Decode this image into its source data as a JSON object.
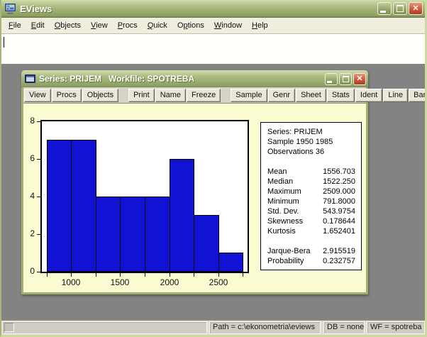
{
  "window": {
    "title": "EViews"
  },
  "menu": {
    "items": [
      {
        "label": "File",
        "mnemonic": 0
      },
      {
        "label": "Edit",
        "mnemonic": 0
      },
      {
        "label": "Objects",
        "mnemonic": 0
      },
      {
        "label": "View",
        "mnemonic": 0
      },
      {
        "label": "Procs",
        "mnemonic": 0
      },
      {
        "label": "Quick",
        "mnemonic": 0
      },
      {
        "label": "Options",
        "mnemonic": 1
      },
      {
        "label": "Window",
        "mnemonic": 0
      },
      {
        "label": "Help",
        "mnemonic": 0
      }
    ]
  },
  "child_window": {
    "title": "Series: PRIJEM   Workfile: SPOTREBA",
    "toolbar_groups": [
      [
        "View",
        "Procs",
        "Objects"
      ],
      [
        "Print",
        "Name",
        "Freeze"
      ],
      [
        "Sample",
        "Genr",
        "Sheet",
        "Stats",
        "Ident",
        "Line",
        "Bar"
      ]
    ]
  },
  "chart_data": {
    "type": "bar",
    "title": "",
    "xlabel": "",
    "ylabel": "",
    "bin_start": 750,
    "bin_width": 250,
    "bins": [
      {
        "range": "750-1000",
        "count": 7
      },
      {
        "range": "1000-1250",
        "count": 7
      },
      {
        "range": "1250-1500",
        "count": 4
      },
      {
        "range": "1500-1750",
        "count": 4
      },
      {
        "range": "1750-2000",
        "count": 4
      },
      {
        "range": "2000-2250",
        "count": 6
      },
      {
        "range": "2250-2500",
        "count": 3
      },
      {
        "range": "2500-2750",
        "count": 1
      }
    ],
    "values": [
      7,
      7,
      4,
      4,
      4,
      6,
      3,
      1
    ],
    "x_tick_labels": [
      1000,
      1500,
      2000,
      2500
    ],
    "y_ticks": [
      0,
      2,
      4,
      6,
      8
    ],
    "xlim": [
      700,
      2800
    ],
    "ylim": [
      0,
      8
    ],
    "grid": false,
    "bar_color": "#1212d4",
    "bar_border_color": "#000000",
    "plot_bg": "#ffffff",
    "canvas_bg": "#fbfbd2"
  },
  "stats_panel": {
    "header_lines": [
      "Series: PRIJEM",
      "Sample 1950 1985",
      "Observations 36"
    ],
    "moment_rows": [
      {
        "label": "Mean",
        "value": "1556.703"
      },
      {
        "label": "Median",
        "value": "1522.250"
      },
      {
        "label": "Maximum",
        "value": "2509.000"
      },
      {
        "label": "Minimum",
        "value": "791.8000"
      },
      {
        "label": "Std. Dev.",
        "value": "543.9754"
      },
      {
        "label": "Skewness",
        "value": "0.178644"
      },
      {
        "label": "Kurtosis",
        "value": "1.652401"
      }
    ],
    "test_rows": [
      {
        "label": "Jarque-Bera",
        "value": "2.915519"
      },
      {
        "label": "Probability",
        "value": "0.232757"
      }
    ]
  },
  "statusbar": {
    "message": "",
    "path": "Path = c:\\ekonometria\\eviews",
    "db": "DB = none",
    "wf": "WF = spotreba"
  },
  "colors": {
    "titlebar_olive": "#9aab6e",
    "close_red": "#cf5134",
    "workspace_gray": "#838383",
    "chart_yellow": "#fbfbd2",
    "bar_blue": "#1212d4"
  }
}
